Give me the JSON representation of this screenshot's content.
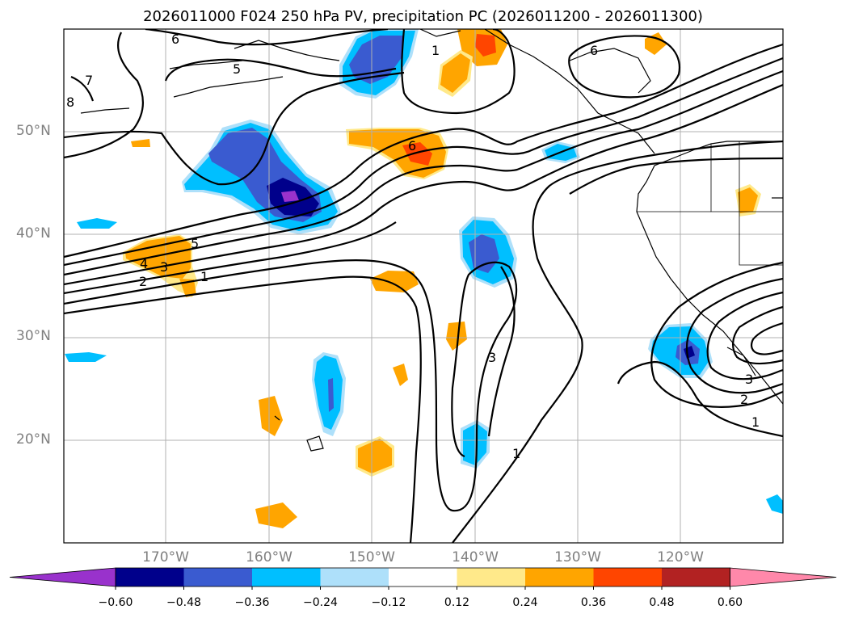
{
  "title": "2026011000 F024 250 hPa PV, precipitation PC (2026011200 - 2026011300)",
  "lat_labels": [
    "50°N",
    "40°N",
    "30°N",
    "20°N"
  ],
  "lon_labels": [
    "170°W",
    "160°W",
    "150°W",
    "140°W",
    "130°W",
    "120°W"
  ],
  "contour_labels": [
    "6",
    "5",
    "7",
    "8",
    "1",
    "6",
    "6",
    "5",
    "4",
    "3",
    "2",
    "1",
    "3",
    "1",
    "3",
    "2",
    "1"
  ],
  "colorbar": {
    "ticks": [
      "−0.60",
      "−0.48",
      "−0.36",
      "−0.24",
      "−0.12",
      "0.12",
      "0.24",
      "0.36",
      "0.48",
      "0.60"
    ],
    "colors": [
      "#9932cc",
      "#00008b",
      "#3a5bd0",
      "#00bfff",
      "#aee0fa",
      "#ffffff",
      "#ffe98a",
      "#ffa500",
      "#ff4500",
      "#b22222",
      "#ff88aa"
    ]
  }
}
